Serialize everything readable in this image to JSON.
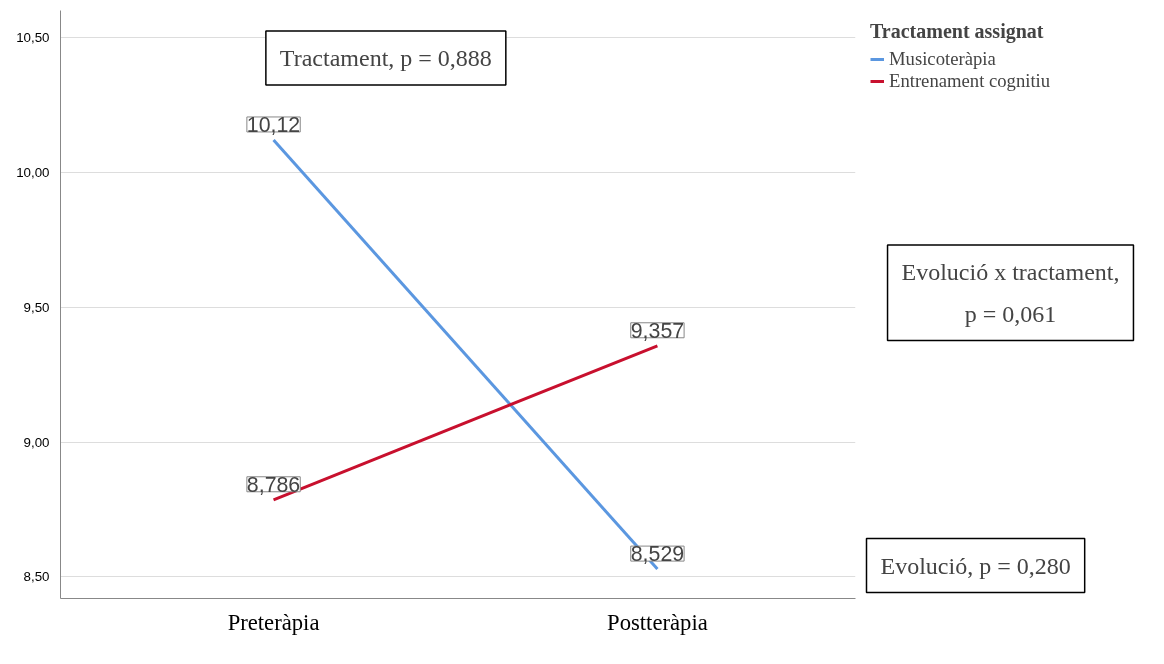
{
  "chart_data": {
    "type": "line",
    "legend_title": "Tractament assignat",
    "categories": [
      "Preteràpia",
      "Postteràpia"
    ],
    "series": [
      {
        "name": "Musicoteràpia",
        "color": "#5b97e0",
        "values": [
          10.12,
          8.529
        ],
        "value_labels": [
          "10,12",
          "8,529"
        ]
      },
      {
        "name": "Entrenament cognitiu",
        "color": "#c8102e",
        "values": [
          8.786,
          9.357
        ],
        "value_labels": [
          "8,786",
          "9,357"
        ]
      }
    ],
    "ylim": [
      8.42,
      10.6
    ],
    "yticks": [
      {
        "value": 8.5,
        "label": "8,50"
      },
      {
        "value": 9.0,
        "label": "9,00"
      },
      {
        "value": 9.5,
        "label": "9,50"
      },
      {
        "value": 10.0,
        "label": "10,00"
      },
      {
        "value": 10.5,
        "label": "10,50"
      }
    ],
    "grid": "y",
    "legend": "top right",
    "line_style": "solid",
    "annotations": [
      "Tractament, p = 0,888",
      "Evolució x tractament,\np = 0,061",
      "Evolució, p = 0,280"
    ]
  }
}
